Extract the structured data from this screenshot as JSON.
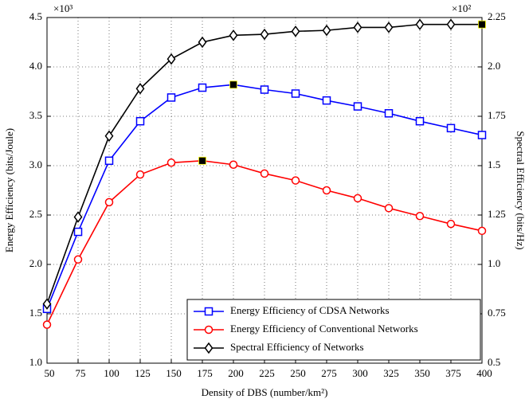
{
  "chart_data": {
    "type": "line",
    "x_label": "Density of DBS (number/km²)",
    "y_label": "Energy Efficiency (bits/Joule)",
    "y2_label": "Spectral Efficiency (bits/Hz)",
    "y_multiplier": "×10³",
    "y2_multiplier": "×10²",
    "x": [
      50,
      75,
      100,
      125,
      150,
      175,
      200,
      225,
      250,
      275,
      300,
      325,
      350,
      375,
      400
    ],
    "xlim": [
      50,
      400
    ],
    "xticks": [
      50,
      75,
      100,
      125,
      150,
      175,
      200,
      225,
      250,
      275,
      300,
      325,
      350,
      375,
      400
    ],
    "ylim": [
      1.0,
      4.5
    ],
    "yticks": [
      {
        "value": 1,
        "label": "1.0"
      },
      1.5,
      {
        "value": 2,
        "label": "2.0"
      },
      2.5,
      {
        "value": 3,
        "label": "3.0"
      },
      3.5,
      {
        "value": 4,
        "label": "4.0"
      },
      4.5
    ],
    "y2lim": [
      0.5,
      2.25
    ],
    "y2ticks": [
      0.5,
      0.75,
      {
        "value": 1,
        "label": "1.0"
      },
      1.25,
      1.5,
      1.75,
      {
        "value": 2,
        "label": "2.0"
      },
      2.25
    ],
    "grid": true,
    "legend": "lower right",
    "series": [
      {
        "name": "Energy Efficiency of CDSA Networks",
        "color": "#0000ff",
        "marker": "square",
        "highlight": 6,
        "values": [
          1.55,
          2.33,
          3.05,
          3.45,
          3.69,
          3.79,
          3.82,
          3.77,
          3.73,
          3.66,
          3.6,
          3.53,
          3.45,
          3.38,
          3.31
        ]
      },
      {
        "name": "Energy Efficiency of Conventional Networks",
        "color": "#ff0000",
        "marker": "circle",
        "highlight": 5,
        "values": [
          1.39,
          2.05,
          2.63,
          2.91,
          3.03,
          3.05,
          3.01,
          2.92,
          2.85,
          2.75,
          2.67,
          2.57,
          2.49,
          2.41,
          2.34
        ]
      },
      {
        "name": "Spectral Efficiency of Networks",
        "color": "#000000",
        "marker": "diamond",
        "axis": "y2",
        "highlight": 14,
        "values": [
          0.8,
          1.24,
          1.65,
          1.89,
          2.04,
          2.125,
          2.16,
          2.165,
          2.18,
          2.185,
          2.2,
          2.2,
          2.215,
          2.215,
          2.215
        ]
      }
    ]
  }
}
